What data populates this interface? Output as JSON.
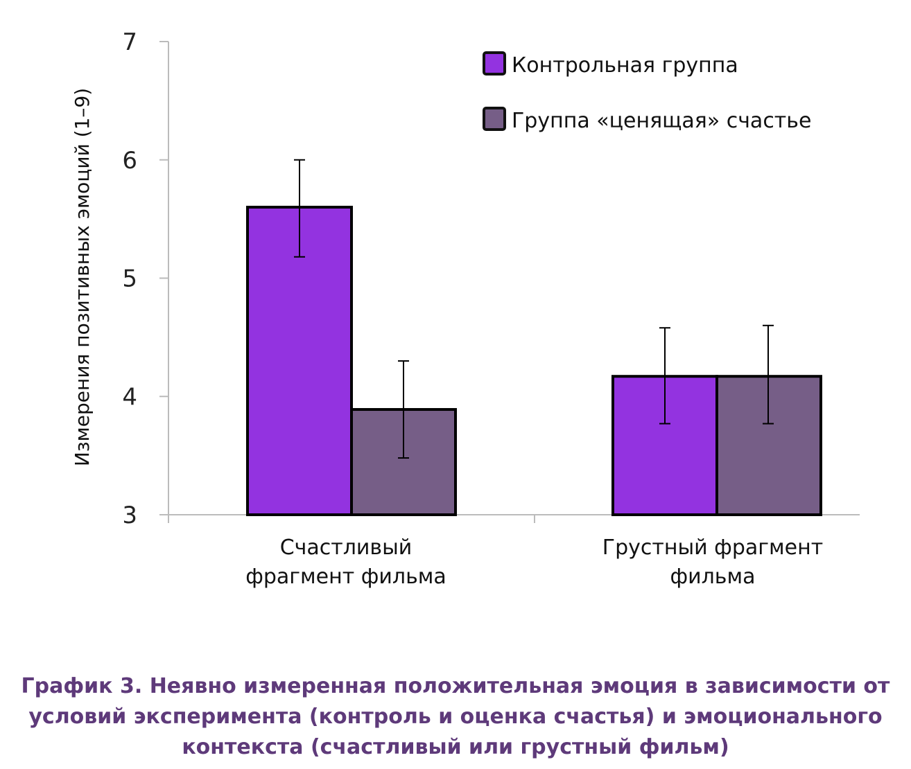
{
  "chart_data": {
    "type": "bar",
    "ylabel": "Измерения позитивных эмоций (1–9)",
    "ylim": [
      3,
      7
    ],
    "yticks": [
      "3",
      "4",
      "5",
      "6",
      "7"
    ],
    "grid": false,
    "legend_position": "top-right",
    "categories": [
      [
        "Счастливый",
        "фрагмент фильма"
      ],
      [
        "Грустный фрагмент",
        "фильма"
      ]
    ],
    "series": [
      {
        "name": "Контрольная группа",
        "color": "#9333e0",
        "values": [
          5.6,
          4.17
        ],
        "error_low": [
          5.18,
          3.77
        ],
        "error_high": [
          6.0,
          4.58
        ]
      },
      {
        "name": "Группа «ценящая» счастье",
        "color": "#765e87",
        "values": [
          3.89,
          4.17
        ],
        "error_low": [
          3.48,
          3.77
        ],
        "error_high": [
          4.3,
          4.6
        ]
      }
    ]
  },
  "caption": {
    "color": "#5e3a7a",
    "lines": [
      "График 3. Неявно измеренная положительная эмоция в зависимости от",
      "условий эксперимента (контроль и оценка счастья) и эмоционального",
      "контекста (счастливый или грустный фильм)"
    ]
  }
}
